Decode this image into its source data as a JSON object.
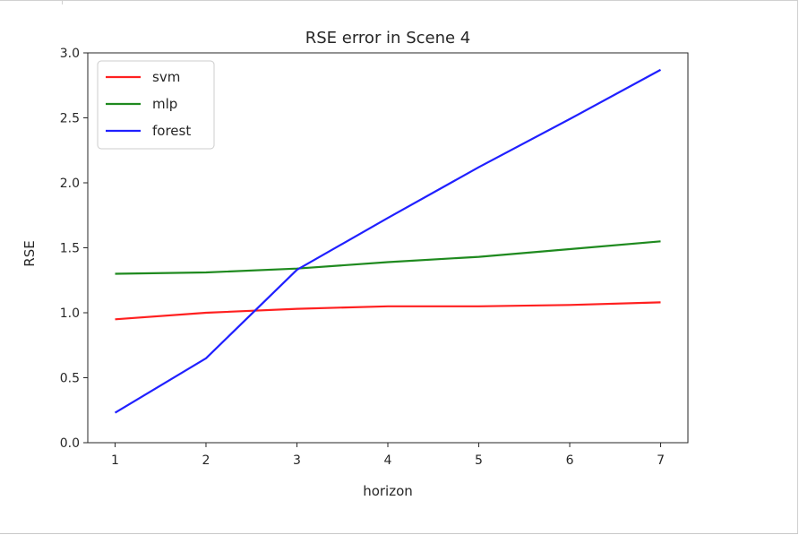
{
  "chart_data": {
    "type": "line",
    "title": "RSE error in Scene 4",
    "xlabel": "horizon",
    "ylabel": "RSE",
    "x": [
      1,
      2,
      3,
      4,
      5,
      6,
      7
    ],
    "xlim": [
      0.7,
      7.3
    ],
    "ylim": [
      0.0,
      3.0
    ],
    "xticks": [
      1,
      2,
      3,
      4,
      5,
      6,
      7
    ],
    "yticks": [
      "0.0",
      "0.5",
      "1.0",
      "1.5",
      "2.0",
      "2.5",
      "3.0"
    ],
    "legend_position": "top-left",
    "series": [
      {
        "name": "svm",
        "color": "#ff2020",
        "values": [
          0.95,
          1.0,
          1.03,
          1.05,
          1.05,
          1.06,
          1.08
        ]
      },
      {
        "name": "mlp",
        "color": "#1f8a1f",
        "values": [
          1.3,
          1.31,
          1.34,
          1.39,
          1.43,
          1.49,
          1.55
        ]
      },
      {
        "name": "forest",
        "color": "#2020ff",
        "values": [
          0.23,
          0.65,
          1.33,
          1.73,
          2.12,
          2.49,
          2.87
        ]
      }
    ]
  }
}
